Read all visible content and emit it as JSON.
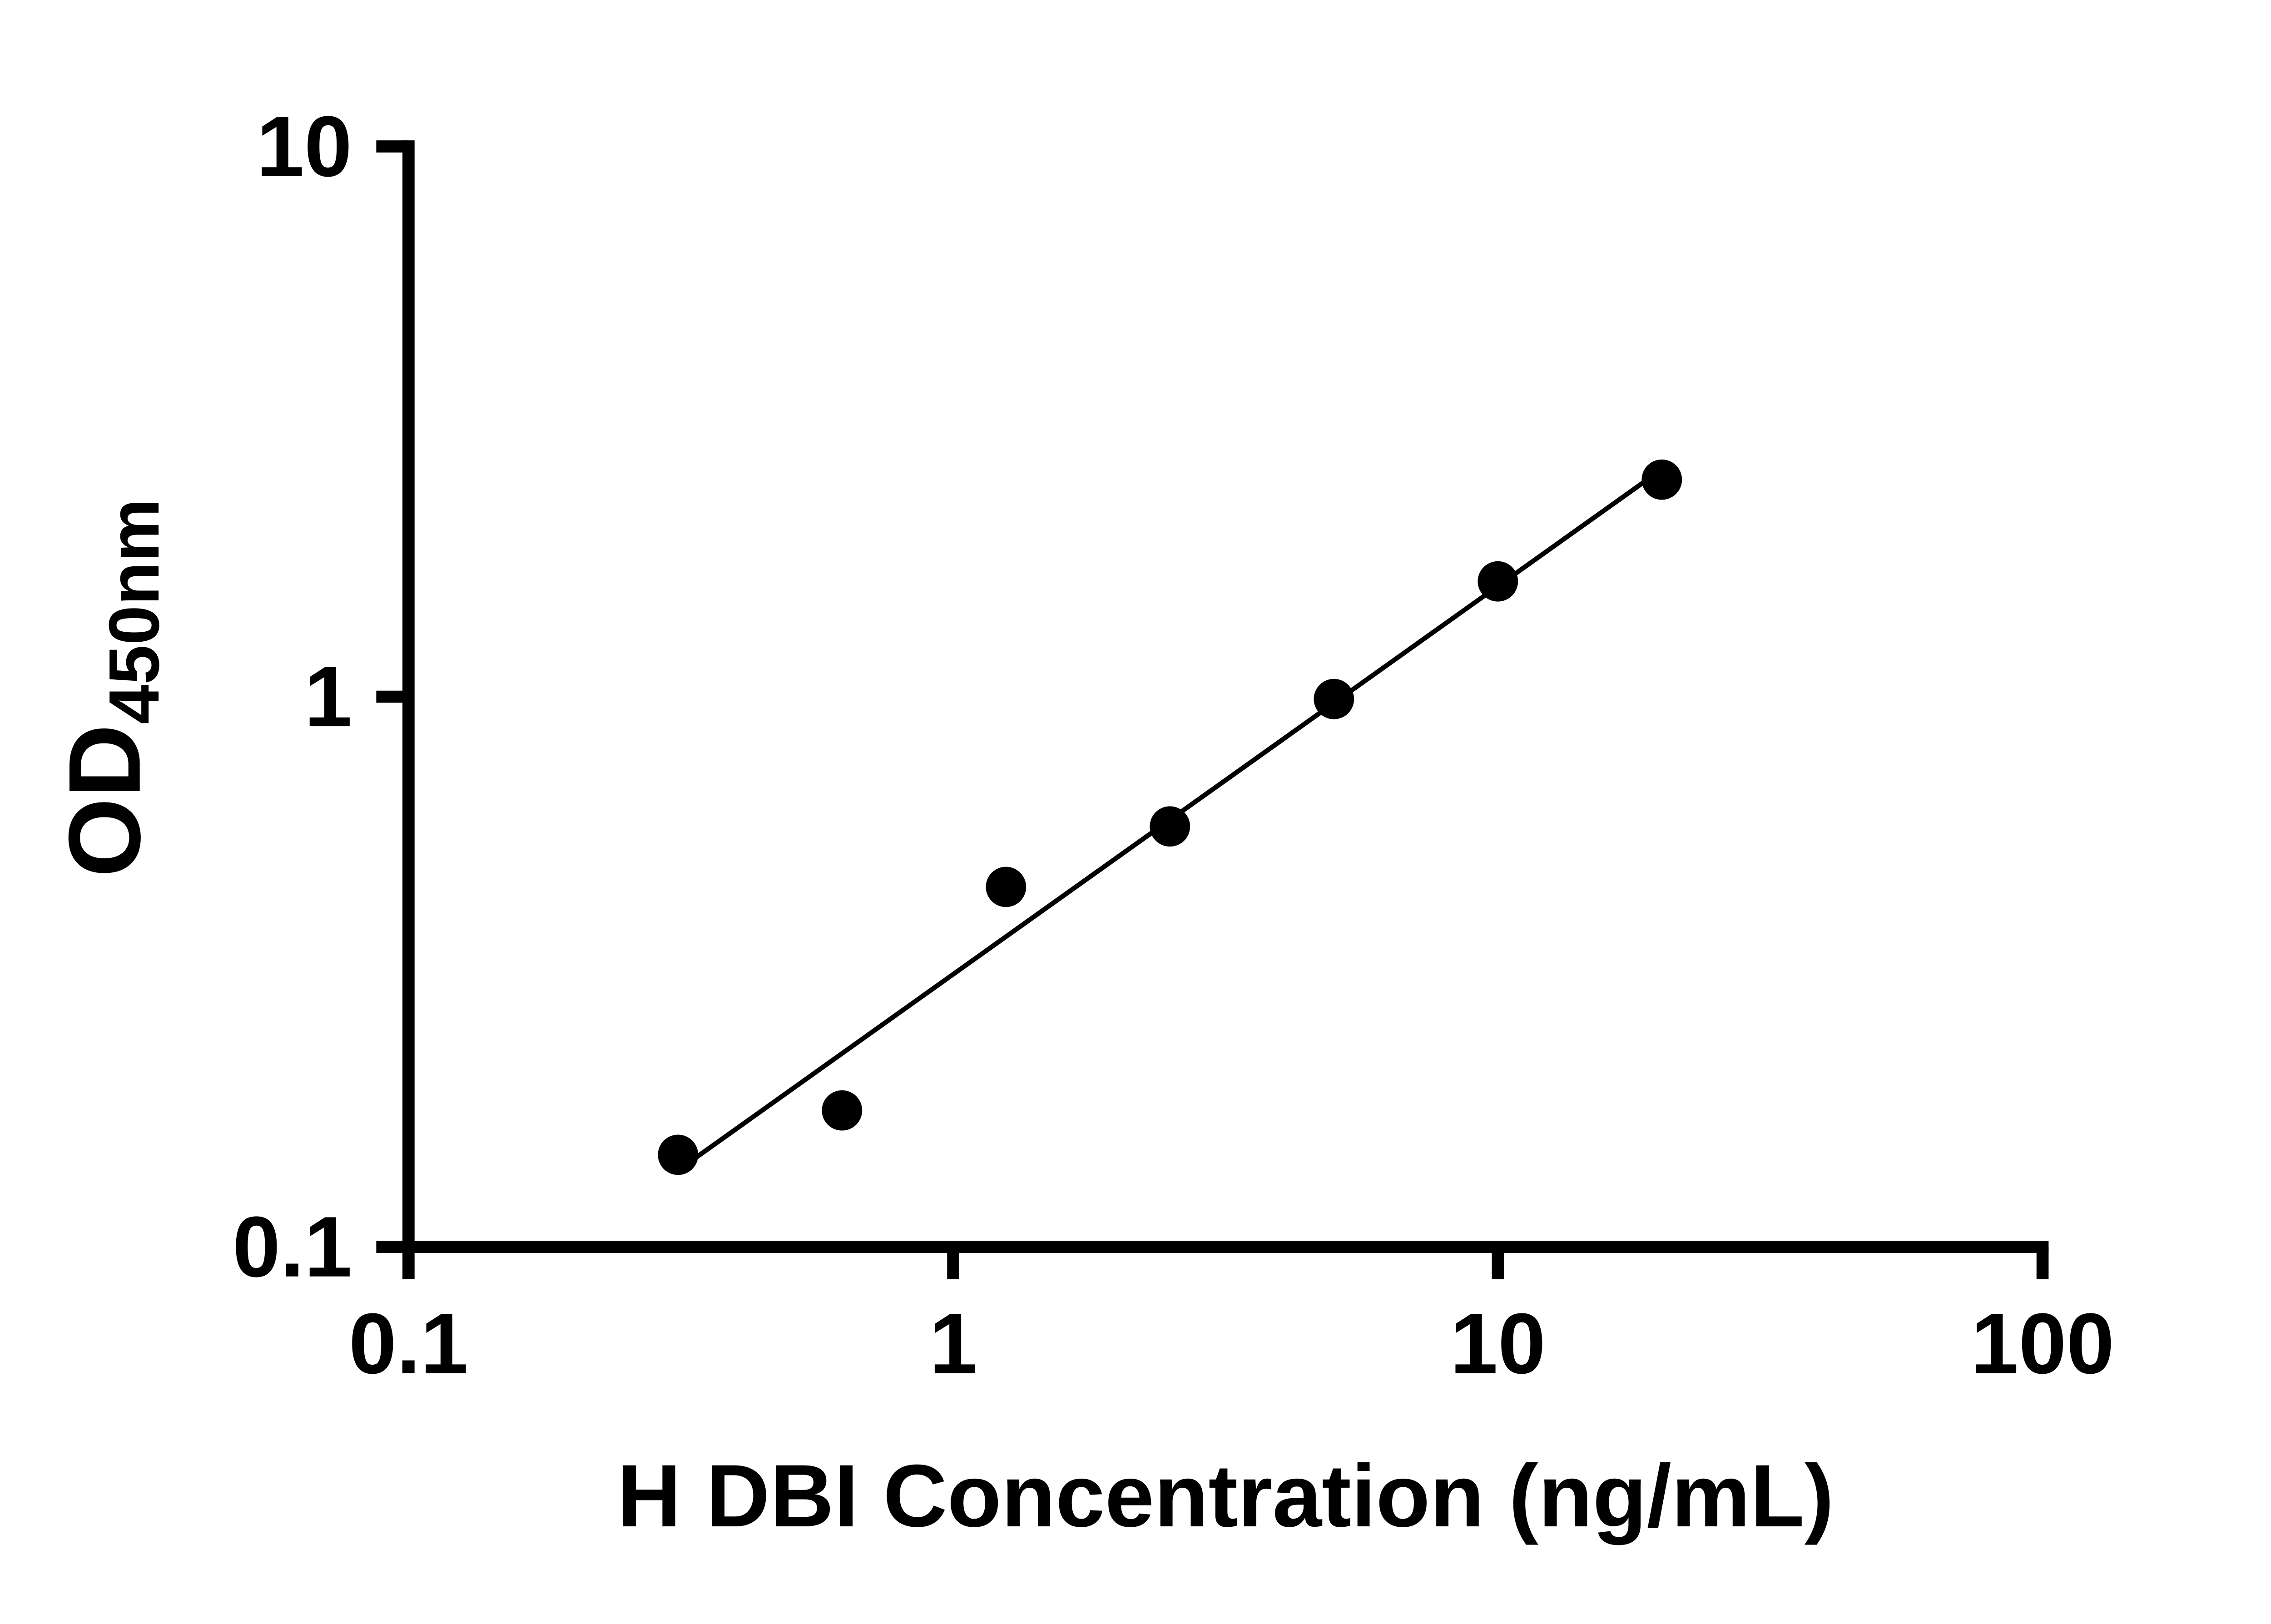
{
  "chart_data": {
    "type": "scatter",
    "series_name": "ELISA standard curve",
    "x": [
      0.3125,
      0.625,
      1.25,
      2.5,
      5,
      10,
      20
    ],
    "y": [
      0.147,
      0.177,
      0.451,
      0.581,
      0.99,
      1.62,
      2.48
    ],
    "title": "",
    "xlabel": "H DBI Concentration (ng/mL)",
    "ylabel": "OD450nm",
    "ylabel_main": "OD",
    "ylabel_sub": "450nm",
    "xscale": "log",
    "yscale": "log",
    "xlim": [
      0.1,
      100
    ],
    "ylim": [
      0.1,
      10
    ],
    "x_ticks": [
      0.1,
      1,
      10,
      100
    ],
    "y_ticks": [
      0.1,
      1,
      10
    ],
    "x_tick_labels": [
      "0.1",
      "1",
      "10",
      "100"
    ],
    "y_tick_labels": [
      "0.1",
      "1",
      "10"
    ],
    "grid": false,
    "legend": false,
    "trendline": true,
    "marker_shape": "circle",
    "marker_color": "#000000",
    "line_color": "#000000",
    "axis_color": "#000000",
    "background_color": "#ffffff"
  }
}
